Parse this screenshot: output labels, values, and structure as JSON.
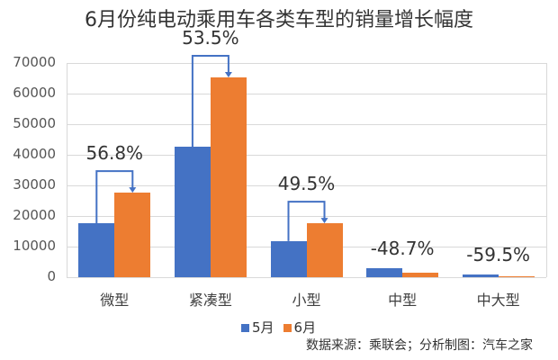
{
  "title": "6月份纯电动乘用车各类车型的销量增长幅度",
  "chart_data": {
    "type": "bar",
    "title": "6月份纯电动乘用车各类车型的销量增长幅度",
    "categories": [
      "微型",
      "紧凑型",
      "小型",
      "中型",
      "中大型"
    ],
    "series": [
      {
        "name": "5月",
        "color": "#4472C4",
        "values": [
          17600,
          42600,
          11800,
          2900,
          900
        ]
      },
      {
        "name": "6月",
        "color": "#ED7D31",
        "values": [
          27600,
          65300,
          17600,
          1500,
          400
        ]
      }
    ],
    "annotations": [
      "56.8%",
      "53.5%",
      "49.5%",
      "-48.7%",
      "-59.5%"
    ],
    "yticks": [
      "0",
      "10000",
      "20000",
      "30000",
      "40000",
      "50000",
      "60000",
      "70000"
    ],
    "ylim": [
      0,
      70000
    ],
    "xlabel": "",
    "ylabel": "",
    "grid": true,
    "legend_position": "bottom"
  },
  "legend": {
    "may": "5月",
    "june": "6月"
  },
  "source": "数据来源：乘联会；分析制图：汽车之家"
}
